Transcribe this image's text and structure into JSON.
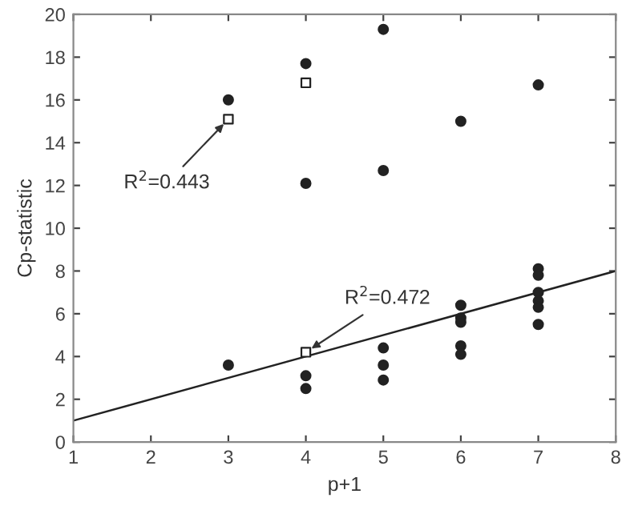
{
  "chart_data": {
    "type": "scatter",
    "xlabel": "p+1",
    "ylabel": "Cp-statistic",
    "series": [
      {
        "marker": "circle",
        "color": "#222222",
        "x": [
          3,
          3,
          4,
          4,
          4,
          4,
          5,
          5,
          5,
          5,
          5,
          6,
          6,
          6,
          6,
          6,
          6,
          7,
          7,
          7,
          7,
          7,
          7,
          7
        ],
        "values": [
          16.0,
          3.6,
          17.7,
          12.1,
          3.1,
          2.5,
          19.3,
          12.7,
          4.4,
          3.6,
          2.9,
          15.0,
          6.4,
          5.8,
          5.6,
          4.5,
          4.1,
          16.7,
          8.1,
          7.8,
          7.0,
          6.6,
          6.3,
          5.5
        ]
      },
      {
        "marker": "square",
        "color": "#222222",
        "x": [
          3,
          4,
          4
        ],
        "values": [
          15.1,
          16.8,
          4.2
        ]
      },
      {
        "type": "line",
        "marker": "none",
        "color": "#222222",
        "x": [
          1,
          8
        ],
        "values": [
          1,
          8
        ]
      }
    ],
    "annotations": [
      {
        "text": "R$^{2}$=0.443",
        "x": 3,
        "y": 15.1
      },
      {
        "text": "R$^{2}$=0.472",
        "x": 4,
        "y": 4.2
      }
    ],
    "xlim": [
      1,
      8
    ],
    "ylim": [
      0,
      20
    ],
    "xticks": [
      1,
      2,
      3,
      4,
      5,
      6,
      7,
      8
    ],
    "yticks": [
      0,
      2,
      4,
      6,
      8,
      10,
      12,
      14,
      16,
      18,
      20
    ],
    "grid": false,
    "legend": false
  }
}
